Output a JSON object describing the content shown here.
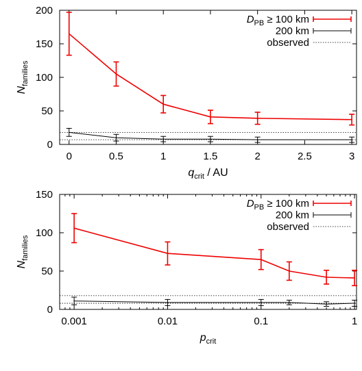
{
  "chart_data": [
    {
      "type": "line",
      "xlabel": {
        "main": "q",
        "sub": "crit",
        "tail": " / AU"
      },
      "ylabel": {
        "main": "N",
        "sub": "families"
      },
      "xscale": "linear",
      "xlim": [
        -0.1,
        3.05
      ],
      "ylim": [
        0,
        200
      ],
      "xticks": [
        0,
        0.5,
        1,
        1.5,
        2,
        2.5,
        3
      ],
      "xtick_labels": [
        "0",
        "0.5",
        "1",
        "1.5",
        "2",
        "2.5",
        "3"
      ],
      "yticks": [
        0,
        50,
        100,
        150,
        200
      ],
      "ytick_labels": [
        "0",
        "50",
        "100",
        "150",
        "200"
      ],
      "grid": false,
      "legend_position": "top-right",
      "series": [
        {
          "name_main": "D",
          "name_sub": "PB",
          "name_tail": " ≥ 100 km",
          "color": "#ee0000",
          "x": [
            0,
            0.5,
            1,
            1.5,
            2,
            3
          ],
          "y": [
            165,
            105,
            60,
            41,
            39,
            37
          ],
          "err": [
            32,
            18,
            13,
            10,
            9,
            8
          ]
        },
        {
          "name_main": "",
          "name_sub": "",
          "name_tail": "200 km",
          "color": "#000000",
          "x": [
            0,
            0.5,
            1,
            1.5,
            2,
            3
          ],
          "y": [
            18,
            10,
            8,
            8,
            7,
            7
          ],
          "err": [
            6,
            5,
            4,
            4,
            4,
            4
          ]
        }
      ],
      "observed": {
        "label": "observed",
        "levels": [
          18,
          7
        ],
        "color": "#000000"
      }
    },
    {
      "type": "line",
      "xlabel": {
        "main": "p",
        "sub": "crit",
        "tail": ""
      },
      "ylabel": {
        "main": "N",
        "sub": "families"
      },
      "xscale": "log",
      "xlim": [
        0.0007,
        1.05
      ],
      "ylim": [
        0,
        150
      ],
      "xticks": [
        0.001,
        0.01,
        0.1,
        1
      ],
      "xtick_labels": [
        "0.001",
        "0.01",
        "0.1",
        "1"
      ],
      "yticks": [
        0,
        50,
        100,
        150
      ],
      "ytick_labels": [
        "0",
        "50",
        "100",
        "150"
      ],
      "grid": false,
      "legend_position": "top-right",
      "series": [
        {
          "name_main": "D",
          "name_sub": "PB",
          "name_tail": " ≥ 100 km",
          "color": "#ee0000",
          "x": [
            0.001,
            0.01,
            0.1,
            0.2,
            0.5,
            1
          ],
          "y": [
            106,
            73,
            65,
            50,
            42,
            41
          ],
          "err": [
            19,
            15,
            13,
            12,
            9,
            10
          ]
        },
        {
          "name_main": "",
          "name_sub": "",
          "name_tail": "200 km",
          "color": "#000000",
          "x": [
            0.001,
            0.01,
            0.1,
            0.2,
            0.5,
            1
          ],
          "y": [
            11,
            9,
            9,
            9,
            7,
            8
          ],
          "err": [
            5,
            4,
            4,
            3,
            3,
            4
          ]
        }
      ],
      "observed": {
        "label": "observed",
        "levels": [
          18,
          8
        ],
        "color": "#000000"
      }
    }
  ]
}
